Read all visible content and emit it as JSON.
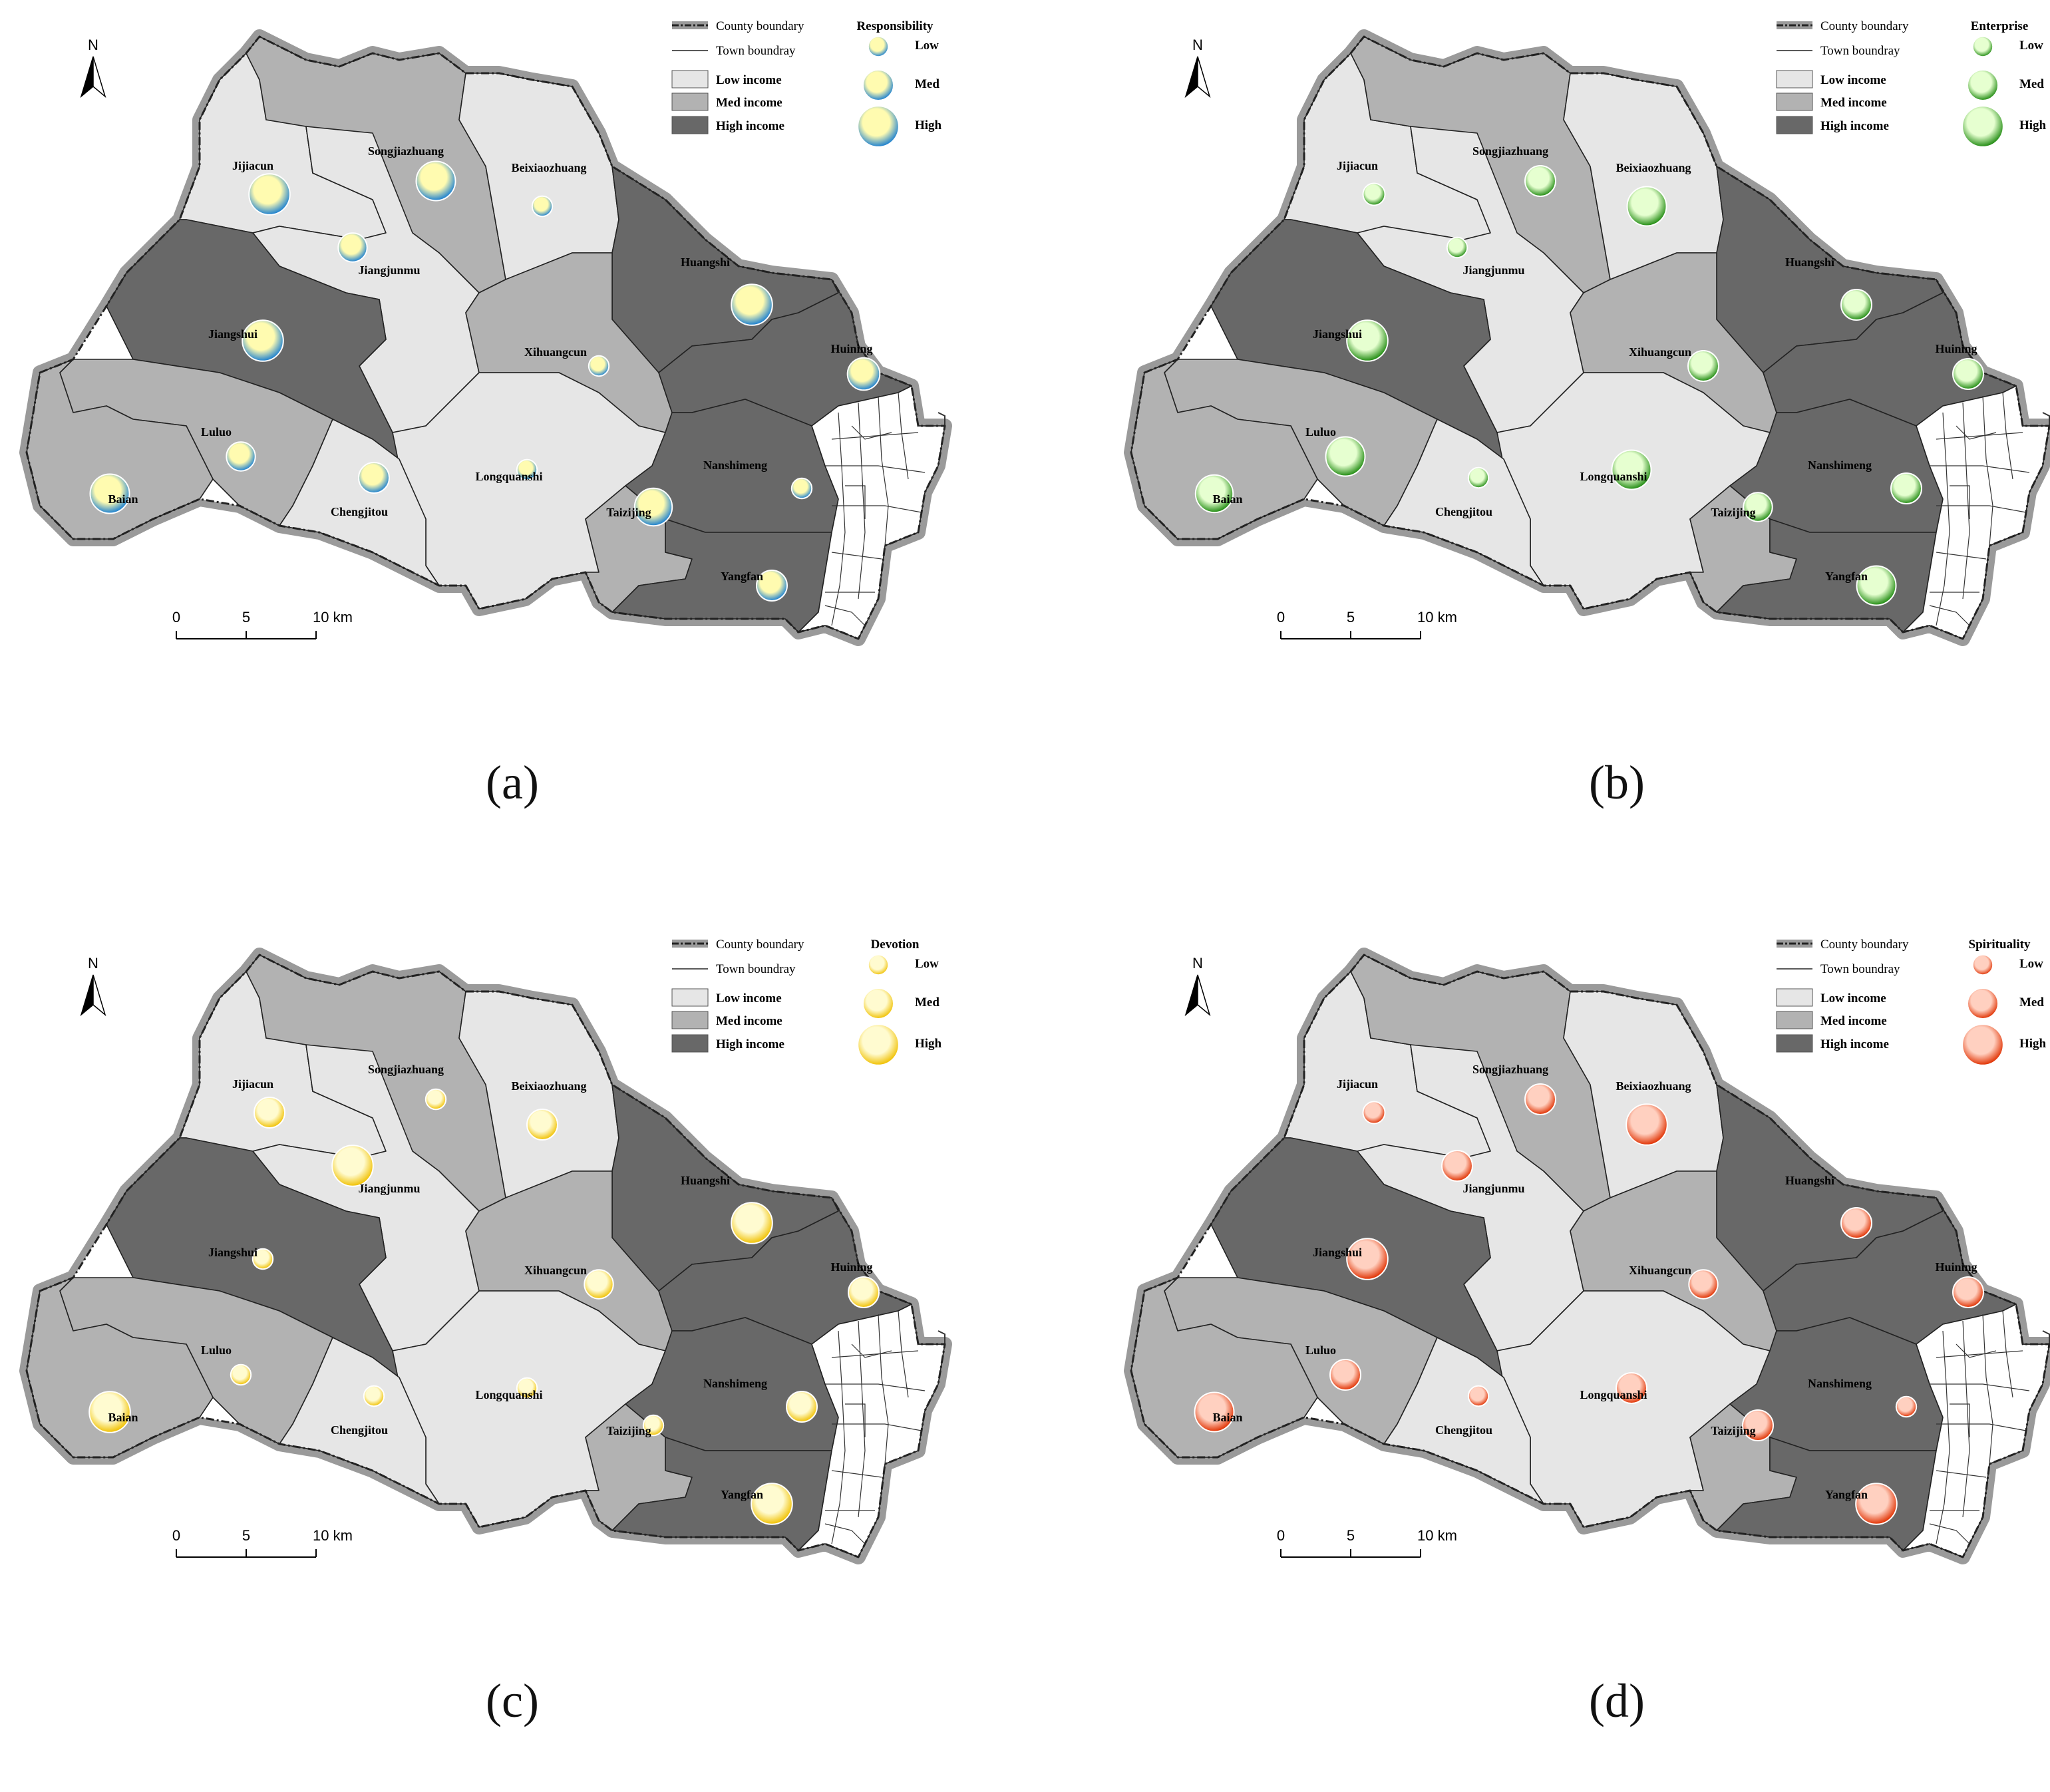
{
  "legend_common": {
    "county_boundary": "County boundary",
    "town_boundary": "Town boundray",
    "low_income": "Low income",
    "med_income": "Med income",
    "high_income": "High income",
    "size_low": "Low",
    "size_med": "Med",
    "size_high": "High",
    "north": "N",
    "scale_0": "0",
    "scale_5": "5",
    "scale_10": "10 km"
  },
  "colors": {
    "low_income": "#e6e6e6",
    "med_income": "#b2b2b2",
    "high_income": "#686868",
    "outside": "#ffffff",
    "county_halo": "#9a9a9a"
  },
  "towns": [
    {
      "id": "jijiacun",
      "name": "Jijiacun",
      "income": "low"
    },
    {
      "id": "songjiazhuang",
      "name": "Songjiazhuang",
      "income": "med"
    },
    {
      "id": "beixiaozhuang",
      "name": "Beixiaozhuang",
      "income": "low"
    },
    {
      "id": "jiangjunmu",
      "name": "Jiangjunmu",
      "income": "low"
    },
    {
      "id": "huangshi",
      "name": "Huangshi",
      "income": "high"
    },
    {
      "id": "jiangshui",
      "name": "Jiangshui",
      "income": "high"
    },
    {
      "id": "xihuangcun",
      "name": "Xihuangcun",
      "income": "med"
    },
    {
      "id": "huining",
      "name": "Huining",
      "income": "high"
    },
    {
      "id": "luluo",
      "name": "Luluo",
      "income": "med"
    },
    {
      "id": "longquanshi",
      "name": "Longquanshi",
      "income": "low"
    },
    {
      "id": "chengjitou",
      "name": "Chengjitou",
      "income": "low"
    },
    {
      "id": "nanshimeng",
      "name": "Nanshimeng",
      "income": "high"
    },
    {
      "id": "baian",
      "name": "Baian",
      "income": "med"
    },
    {
      "id": "taizijing",
      "name": "Taizijing",
      "income": "med"
    },
    {
      "id": "yangfan",
      "name": "Yangfan",
      "income": "high"
    }
  ],
  "panels": [
    {
      "caption": "(a)",
      "indicator": "Responsibility",
      "symbol_color": "#1a7fd0",
      "symbol_center": "#fffbb0",
      "levels": {
        "jijiacun": 0.8,
        "songjiazhuang": 0.75,
        "beixiaozhuang": 0.2,
        "jiangjunmu": 0.45,
        "huangshi": 0.8,
        "jiangshui": 0.8,
        "xihuangcun": 0.2,
        "huining": 0.55,
        "luluo": 0.45,
        "longquanshi": 0.2,
        "chengjitou": 0.5,
        "nanshimeng": 0.2,
        "baian": 0.75,
        "taizijing": 0.7,
        "yangfan": 0.5
      }
    },
    {
      "caption": "(b)",
      "indicator": "Enterprise",
      "symbol_color": "#1f8a10",
      "symbol_center": "#e6ffd0",
      "levels": {
        "jijiacun": 0.25,
        "songjiazhuang": 0.5,
        "beixiaozhuang": 0.75,
        "jiangjunmu": 0.2,
        "huangshi": 0.5,
        "jiangshui": 0.8,
        "xihuangcun": 0.5,
        "huining": 0.5,
        "luluo": 0.75,
        "longquanshi": 0.75,
        "chengjitou": 0.2,
        "nanshimeng": 0.5,
        "baian": 0.7,
        "taizijing": 0.45,
        "yangfan": 0.75
      }
    },
    {
      "caption": "(c)",
      "indicator": "Devotion",
      "symbol_color": "#f0c000",
      "symbol_center": "#fffbd0",
      "levels": {
        "jijiacun": 0.5,
        "songjiazhuang": 0.2,
        "beixiaozhuang": 0.5,
        "jiangjunmu": 0.8,
        "huangshi": 0.8,
        "jiangshui": 0.2,
        "xihuangcun": 0.45,
        "huining": 0.5,
        "luluo": 0.2,
        "longquanshi": 0.2,
        "chengjitou": 0.2,
        "nanshimeng": 0.5,
        "baian": 0.8,
        "taizijing": 0.2,
        "yangfan": 0.8
      }
    },
    {
      "caption": "(d)",
      "indicator": "Spirituality",
      "symbol_color": "#e03000",
      "symbol_center": "#ffd0c0",
      "levels": {
        "jijiacun": 0.25,
        "songjiazhuang": 0.5,
        "beixiaozhuang": 0.8,
        "jiangjunmu": 0.5,
        "huangshi": 0.5,
        "jiangshui": 0.8,
        "xihuangcun": 0.45,
        "huining": 0.5,
        "luluo": 0.5,
        "longquanshi": 0.5,
        "chengjitou": 0.2,
        "nanshimeng": 0.2,
        "baian": 0.75,
        "taizijing": 0.5,
        "yangfan": 0.8
      }
    }
  ]
}
